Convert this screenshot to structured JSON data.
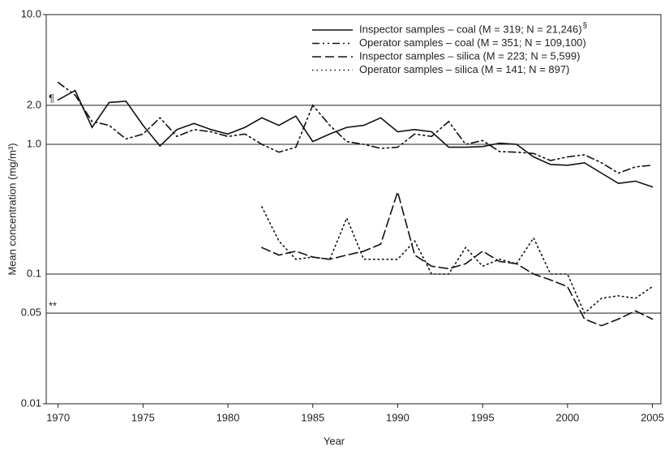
{
  "chart_data": {
    "type": "line",
    "x_label": "Year",
    "y_label": "Mean concentration (mg/m³)",
    "x": [
      1970,
      1971,
      1972,
      1973,
      1974,
      1975,
      1976,
      1977,
      1978,
      1979,
      1980,
      1981,
      1982,
      1983,
      1984,
      1985,
      1986,
      1987,
      1988,
      1989,
      1990,
      1991,
      1992,
      1993,
      1994,
      1995,
      1996,
      1997,
      1998,
      1999,
      2000,
      2001,
      2002,
      2003,
      2004,
      2005
    ],
    "xlim": [
      1969.3,
      2005.5
    ],
    "xticks": [
      1970,
      1975,
      1980,
      1985,
      1990,
      1995,
      2000,
      2005
    ],
    "ylim": [
      0.01,
      10
    ],
    "yticks": [
      0.01,
      0.05,
      0.1,
      {
        "value": 1,
        "label": "1.0"
      },
      {
        "value": 2,
        "label": "2.0"
      },
      {
        "value": 10,
        "label": "10.0"
      }
    ],
    "log_y": true,
    "grid": true,
    "legend": "upper right",
    "annotations": [
      {
        "text": "¶",
        "y": 2
      },
      {
        "text": "**",
        "y": 0.05
      }
    ],
    "series": [
      {
        "name": "Inspector samples – coal (M = 319; N = 21,246)",
        "note": "§",
        "color": "#111111",
        "style": "solid",
        "values": [
          2.2,
          2.6,
          1.35,
          2.1,
          2.15,
          1.4,
          0.97,
          1.3,
          1.45,
          1.3,
          1.2,
          1.35,
          1.6,
          1.4,
          1.65,
          1.05,
          1.2,
          1.35,
          1.4,
          1.6,
          1.25,
          1.3,
          1.25,
          0.95,
          0.95,
          0.96,
          1.02,
          1.0,
          0.8,
          0.7,
          0.69,
          0.72,
          0.6,
          0.5,
          0.52,
          0.47
        ]
      },
      {
        "name": "Operator samples – coal (M = 351; N = 109,100)",
        "color": "#111111",
        "style": "dashdot",
        "values": [
          3.0,
          2.4,
          1.5,
          1.4,
          1.1,
          1.2,
          1.6,
          1.15,
          1.3,
          1.25,
          1.15,
          1.2,
          1.0,
          0.87,
          0.95,
          2.0,
          1.4,
          1.05,
          1.0,
          0.93,
          0.95,
          1.2,
          1.15,
          1.5,
          1.0,
          1.07,
          0.88,
          0.87,
          0.85,
          0.75,
          0.8,
          0.83,
          0.72,
          0.6,
          0.67,
          0.69
        ]
      },
      {
        "name": "Inspector samples – silica (M = 223; N = 5,599)",
        "color": "#111111",
        "style": "dashed",
        "values": [
          null,
          null,
          null,
          null,
          null,
          null,
          null,
          null,
          null,
          null,
          null,
          null,
          0.16,
          0.14,
          0.15,
          0.135,
          0.13,
          0.14,
          0.15,
          0.17,
          0.43,
          0.14,
          0.115,
          0.11,
          0.12,
          0.15,
          0.125,
          0.12,
          0.1,
          0.09,
          0.08,
          0.045,
          0.04,
          0.045,
          0.052,
          0.045
        ]
      },
      {
        "name": "Operator samples – silica (M = 141; N = 897)",
        "color": "#111111",
        "style": "dotted",
        "values": [
          null,
          null,
          null,
          null,
          null,
          null,
          null,
          null,
          null,
          null,
          null,
          null,
          0.33,
          0.18,
          0.13,
          0.135,
          0.13,
          0.27,
          0.13,
          0.13,
          0.13,
          0.18,
          0.1,
          0.1,
          0.16,
          0.115,
          0.13,
          0.12,
          0.19,
          0.1,
          0.1,
          0.05,
          0.065,
          0.068,
          0.065,
          0.08
        ]
      }
    ]
  }
}
